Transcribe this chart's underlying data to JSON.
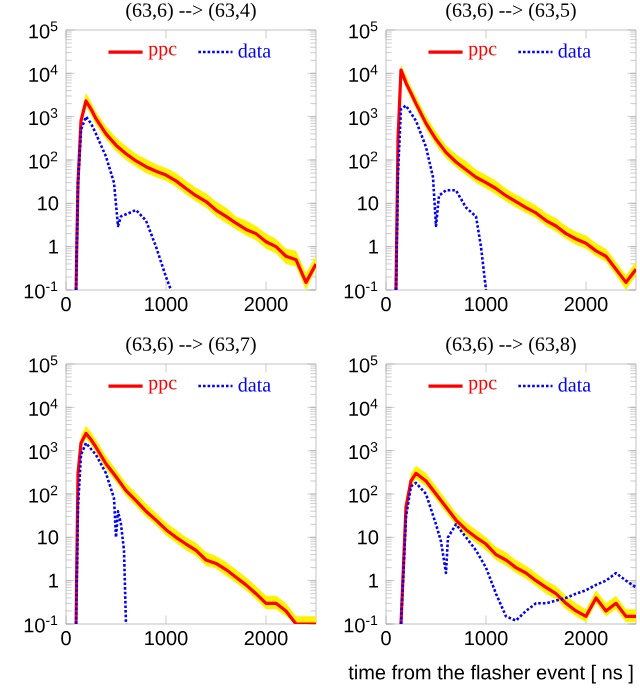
{
  "chart_data": [
    {
      "type": "line",
      "title": "(63,6) --> (63,4)",
      "xlim": [
        0,
        2500
      ],
      "ylim": [
        0.1,
        100000
      ],
      "log": "y",
      "legend": "top",
      "xticks": [
        0,
        1000,
        2000
      ],
      "yticks": [
        {
          "value": 0.1,
          "label": "10$^{-1}$"
        },
        1,
        10,
        {
          "value": 100,
          "label": "10$^{2}$"
        },
        {
          "value": 1000,
          "label": "10$^{3}$"
        },
        {
          "value": 10000,
          "label": "10$^{4}$"
        },
        {
          "value": 100000,
          "label": "10$^{5}$"
        }
      ],
      "series": [
        {
          "name": "ppc",
          "color": "#ff0000",
          "line_style": "solid",
          "x": [
            100,
            120,
            150,
            200,
            250,
            300,
            400,
            500,
            600,
            700,
            800,
            900,
            1000,
            1100,
            1200,
            1300,
            1400,
            1500,
            1600,
            1700,
            1800,
            1900,
            2000,
            2100,
            2200,
            2300,
            2400,
            2500
          ],
          "values": [
            0.1,
            30,
            800,
            2300,
            1500,
            900,
            400,
            220,
            140,
            95,
            70,
            55,
            45,
            33,
            22,
            15,
            11,
            7,
            5,
            3.5,
            2.5,
            2,
            1.3,
            1,
            0.6,
            0.5,
            0.15,
            0.4
          ],
          "upper": [
            0.1,
            45,
            1200,
            3500,
            2200,
            1300,
            600,
            330,
            210,
            140,
            105,
            80,
            65,
            50,
            33,
            23,
            17,
            11,
            8,
            5,
            4,
            3,
            2,
            1.5,
            0.9,
            0.8,
            0.25,
            0.6
          ],
          "lower": [
            0.1,
            20,
            600,
            1700,
            1100,
            650,
            300,
            160,
            100,
            70,
            50,
            40,
            33,
            24,
            16,
            11,
            8,
            5,
            3.5,
            2.5,
            1.8,
            1.4,
            0.9,
            0.7,
            0.4,
            0.35,
            0.1,
            0.3
          ]
        },
        {
          "name": "data",
          "color": "#0000ff",
          "line_style": "dotted",
          "x": [
            100,
            120,
            150,
            200,
            250,
            300,
            400,
            480,
            520,
            550,
            700,
            800,
            900,
            1000,
            1050
          ],
          "values": [
            0.1,
            30,
            500,
            1000,
            700,
            400,
            120,
            30,
            3,
            5,
            7,
            4,
            1,
            0.2,
            0.1
          ]
        }
      ]
    },
    {
      "type": "line",
      "title": "(63,6) --> (63,5)",
      "xlim": [
        0,
        2500
      ],
      "ylim": [
        0.1,
        100000
      ],
      "log": "y",
      "legend": "top",
      "xticks": [
        0,
        1000,
        2000
      ],
      "yticks": [
        {
          "value": 0.1,
          "label": "10$^{-1}$"
        },
        1,
        10,
        {
          "value": 100,
          "label": "10$^{2}$"
        },
        {
          "value": 1000,
          "label": "10$^{3}$"
        },
        {
          "value": 10000,
          "label": "10$^{4}$"
        },
        {
          "value": 100000,
          "label": "10$^{5}$"
        }
      ],
      "series": [
        {
          "name": "ppc",
          "color": "#ff0000",
          "line_style": "solid",
          "x": [
            100,
            120,
            150,
            200,
            250,
            300,
            400,
            500,
            600,
            700,
            800,
            900,
            1000,
            1100,
            1200,
            1300,
            1400,
            1500,
            1600,
            1700,
            1800,
            1900,
            2000,
            2100,
            2200,
            2300,
            2400,
            2500
          ],
          "values": [
            0.1,
            300,
            12000,
            6000,
            3500,
            2000,
            700,
            300,
            150,
            90,
            60,
            40,
            30,
            22,
            15,
            11,
            8,
            6,
            4,
            3,
            2,
            1.5,
            1.2,
            0.8,
            0.6,
            0.3,
            0.15,
            0.3
          ],
          "upper": [
            0.1,
            450,
            16000,
            9000,
            5000,
            3000,
            1050,
            450,
            220,
            135,
            95,
            60,
            45,
            33,
            22,
            16,
            12,
            9,
            6,
            4.5,
            3,
            2.2,
            1.8,
            1.2,
            0.9,
            0.45,
            0.22,
            0.45
          ],
          "lower": [
            0.1,
            200,
            9000,
            4500,
            2600,
            1500,
            520,
            220,
            110,
            68,
            45,
            30,
            22,
            16,
            11,
            8,
            6,
            4.5,
            3,
            2.2,
            1.5,
            1.1,
            0.9,
            0.6,
            0.45,
            0.22,
            0.1,
            0.22
          ]
        },
        {
          "name": "data",
          "color": "#0000ff",
          "line_style": "dotted",
          "x": [
            100,
            120,
            150,
            200,
            300,
            400,
            470,
            500,
            530,
            600,
            700,
            800,
            900,
            950,
            1000
          ],
          "values": [
            0.1,
            50,
            1500,
            1800,
            800,
            200,
            40,
            3,
            15,
            20,
            20,
            8,
            5,
            1,
            0.1
          ]
        }
      ]
    },
    {
      "type": "line",
      "title": "(63,6) --> (63,7)",
      "xlim": [
        0,
        2500
      ],
      "ylim": [
        0.1,
        100000
      ],
      "log": "y",
      "legend": "top",
      "xticks": [
        0,
        1000,
        2000
      ],
      "yticks": [
        {
          "value": 0.1,
          "label": "10$^{-1}$"
        },
        1,
        10,
        {
          "value": 100,
          "label": "10$^{2}$"
        },
        {
          "value": 1000,
          "label": "10$^{3}$"
        },
        {
          "value": 10000,
          "label": "10$^{4}$"
        },
        {
          "value": 100000,
          "label": "10$^{5}$"
        }
      ],
      "series": [
        {
          "name": "ppc",
          "color": "#ff0000",
          "line_style": "solid",
          "x": [
            100,
            120,
            150,
            200,
            250,
            300,
            400,
            500,
            600,
            700,
            800,
            900,
            1000,
            1100,
            1200,
            1300,
            1400,
            1500,
            1600,
            1700,
            1800,
            1900,
            2000,
            2100,
            2200,
            2300,
            2400,
            2500
          ],
          "values": [
            0.1,
            300,
            1500,
            2500,
            1800,
            1200,
            500,
            250,
            120,
            70,
            40,
            25,
            15,
            10,
            7,
            5,
            3,
            2.5,
            1.8,
            1.2,
            0.8,
            0.5,
            0.3,
            0.3,
            0.2,
            0.1,
            0.1,
            0.1
          ],
          "upper": [
            0.1,
            450,
            2200,
            3700,
            2700,
            1800,
            750,
            370,
            180,
            105,
            60,
            37,
            22,
            15,
            10,
            7.5,
            4.5,
            3.7,
            2.7,
            1.8,
            1.2,
            0.75,
            0.45,
            0.45,
            0.3,
            0.15,
            0.15,
            0.15
          ],
          "lower": [
            0.1,
            220,
            1100,
            1900,
            1350,
            900,
            370,
            190,
            90,
            52,
            30,
            19,
            11,
            7.5,
            5,
            3.7,
            2.2,
            1.9,
            1.3,
            0.9,
            0.6,
            0.37,
            0.22,
            0.22,
            0.15,
            0.1,
            0.1,
            0.1
          ]
        },
        {
          "name": "data",
          "color": "#0000ff",
          "line_style": "dotted",
          "x": [
            100,
            120,
            150,
            200,
            300,
            400,
            480,
            500,
            520,
            550,
            580,
            600
          ],
          "values": [
            0.1,
            50,
            800,
            1500,
            800,
            300,
            80,
            10,
            40,
            20,
            5,
            0.1
          ]
        }
      ]
    },
    {
      "type": "line",
      "title": "(63,6) --> (63,8)",
      "xlabel": "time from the flasher event [ ns ]",
      "xlim": [
        0,
        2500
      ],
      "ylim": [
        0.1,
        100000
      ],
      "log": "y",
      "legend": "top",
      "xticks": [
        0,
        1000,
        2000
      ],
      "yticks": [
        {
          "value": 0.1,
          "label": "10$^{-1}$"
        },
        1,
        10,
        {
          "value": 100,
          "label": "10$^{2}$"
        },
        {
          "value": 1000,
          "label": "10$^{3}$"
        },
        {
          "value": 10000,
          "label": "10$^{4}$"
        },
        {
          "value": 100000,
          "label": "10$^{5}$"
        }
      ],
      "series": [
        {
          "name": "ppc",
          "color": "#ff0000",
          "line_style": "solid",
          "x": [
            150,
            200,
            250,
            300,
            400,
            500,
            600,
            700,
            800,
            900,
            1000,
            1100,
            1200,
            1300,
            1400,
            1500,
            1600,
            1700,
            1800,
            1900,
            2000,
            2100,
            2200,
            2300,
            2400,
            2500
          ],
          "values": [
            0.1,
            50,
            200,
            300,
            200,
            100,
            50,
            25,
            15,
            10,
            7,
            4,
            3,
            2,
            1.5,
            1,
            0.7,
            0.5,
            0.3,
            0.2,
            0.15,
            0.4,
            0.2,
            0.3,
            0.15,
            0.15
          ],
          "upper": [
            0.1,
            75,
            300,
            450,
            300,
            150,
            75,
            37,
            22,
            15,
            10,
            6,
            4.5,
            3,
            2.2,
            1.5,
            1,
            0.75,
            0.45,
            0.3,
            0.22,
            0.6,
            0.3,
            0.45,
            0.22,
            0.22
          ],
          "lower": [
            0.1,
            37,
            150,
            220,
            150,
            75,
            37,
            19,
            11,
            7.5,
            5,
            3,
            2.2,
            1.5,
            1.1,
            0.75,
            0.5,
            0.37,
            0.22,
            0.15,
            0.11,
            0.3,
            0.15,
            0.22,
            0.11,
            0.11
          ]
        },
        {
          "name": "data",
          "color": "#0000ff",
          "line_style": "dotted",
          "x": [
            150,
            200,
            250,
            300,
            400,
            500,
            550,
            600,
            620,
            700,
            800,
            900,
            1000,
            1100,
            1200,
            1300,
            1400,
            1500,
            1600,
            1800,
            1900,
            2000,
            2100,
            2200,
            2300,
            2400,
            2500
          ],
          "values": [
            0.1,
            30,
            150,
            180,
            100,
            20,
            8,
            1.5,
            10,
            20,
            10,
            5,
            2,
            0.5,
            0.15,
            0.12,
            0.2,
            0.3,
            0.3,
            0.4,
            0.5,
            0.6,
            0.8,
            1,
            1.5,
            1,
            0.7
          ]
        }
      ]
    }
  ]
}
